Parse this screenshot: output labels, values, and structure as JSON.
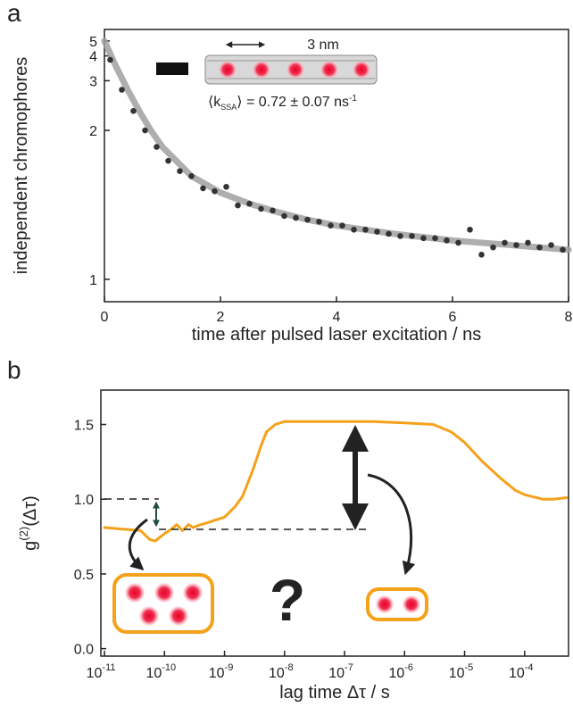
{
  "chart_data": [
    {
      "type": "scatter",
      "panel_label": "a",
      "x": [
        0.1,
        0.3,
        0.5,
        0.7,
        0.9,
        1.1,
        1.3,
        1.5,
        1.7,
        1.9,
        2.1,
        2.3,
        2.5,
        2.7,
        2.9,
        3.1,
        3.3,
        3.5,
        3.7,
        3.9,
        4.1,
        4.3,
        4.5,
        4.7,
        4.9,
        5.1,
        5.3,
        5.5,
        5.7,
        5.9,
        6.1,
        6.3,
        6.5,
        6.7,
        6.9,
        7.1,
        7.3,
        7.5,
        7.7,
        7.9
      ],
      "series": [
        {
          "color": "#333333",
          "values": [
            3.8,
            2.75,
            2.3,
            2.0,
            1.8,
            1.66,
            1.57,
            1.53,
            1.44,
            1.42,
            1.45,
            1.33,
            1.34,
            1.31,
            1.3,
            1.27,
            1.26,
            1.25,
            1.24,
            1.22,
            1.22,
            1.2,
            1.2,
            1.19,
            1.18,
            1.17,
            1.17,
            1.16,
            1.16,
            1.15,
            1.14,
            1.2,
            1.09,
            1.12,
            1.14,
            1.13,
            1.14,
            1.12,
            1.13,
            1.11
          ]
        }
      ],
      "fit": {
        "color": "#a0a0a0",
        "x": [
          0,
          0.2,
          0.4,
          0.6,
          0.8,
          1.0,
          1.5,
          2,
          2.5,
          3,
          3.5,
          4,
          5,
          6,
          7,
          8
        ],
        "values": [
          5.0,
          3.5,
          2.75,
          2.3,
          2.0,
          1.8,
          1.53,
          1.41,
          1.34,
          1.29,
          1.25,
          1.22,
          1.18,
          1.15,
          1.13,
          1.11
        ]
      },
      "xlabel": "time after pulsed laser excitation / ns",
      "ylabel": "independent chromophores",
      "xlim": [
        0,
        8
      ],
      "xticks": [
        0,
        2,
        4,
        6,
        8
      ],
      "ylim": [
        0.93,
        6.2
      ],
      "yticks": [
        1,
        2,
        3,
        4,
        5
      ],
      "yscale": "reciprocal",
      "annotations": {
        "length": "3 nm",
        "rate_open": "⟨k",
        "rate_sub": "SSA",
        "rate_main": "⟩ = 0.72 ± 0.07 ns",
        "rate_sup": "-1"
      }
    },
    {
      "type": "line",
      "panel_label": "b",
      "x": [
        1e-11,
        2e-11,
        4e-11,
        5.7e-11,
        7e-11,
        1e-10,
        1.3e-10,
        1.6e-10,
        2e-10,
        2.5e-10,
        3e-10,
        4e-10,
        5e-10,
        7e-10,
        1e-09,
        1.5e-09,
        2e-09,
        3e-09,
        4e-09,
        5e-09,
        7e-09,
        1e-08,
        3e-08,
        1e-07,
        3e-07,
        1e-06,
        3e-06,
        6e-06,
        1e-05,
        2e-05,
        4e-05,
        7e-05,
        0.0001,
        0.0002,
        0.0003,
        0.0005
      ],
      "series": [
        {
          "color": "#f5a21b",
          "values": [
            0.81,
            0.8,
            0.79,
            0.73,
            0.72,
            0.77,
            0.8,
            0.83,
            0.79,
            0.83,
            0.81,
            0.83,
            0.84,
            0.86,
            0.88,
            0.95,
            1.02,
            1.2,
            1.35,
            1.45,
            1.5,
            1.52,
            1.52,
            1.52,
            1.52,
            1.51,
            1.5,
            1.45,
            1.38,
            1.25,
            1.14,
            1.06,
            1.03,
            1.0,
            1.0,
            1.01
          ]
        }
      ],
      "xscale": "log",
      "xlabel": "lag time Δτ / s",
      "ylabel": {
        "main": "g",
        "superscript": "(2)",
        "argument": "(Δτ)"
      },
      "xlim": [
        8.7e-12,
        0.00054
      ],
      "xticks": [
        {
          "value": 1e-11,
          "label": "10",
          "exponent": "-11"
        },
        {
          "value": 1e-10,
          "label": "10",
          "exponent": "-10"
        },
        {
          "value": 1e-09,
          "label": "10",
          "exponent": "-9"
        },
        {
          "value": 1e-08,
          "label": "10",
          "exponent": "-8"
        },
        {
          "value": 1e-07,
          "label": "10",
          "exponent": "-7"
        },
        {
          "value": 1e-06,
          "label": "10",
          "exponent": "-6"
        },
        {
          "value": 1e-05,
          "label": "10",
          "exponent": "-5"
        },
        {
          "value": 0.0001,
          "label": "10",
          "exponent": "-4"
        }
      ],
      "ylim": [
        -0.05,
        1.73
      ],
      "yticks": [
        {
          "value": 0,
          "label": "0.0"
        },
        0.5,
        {
          "value": 1,
          "label": "1.0"
        },
        1.5
      ],
      "annotation": "?"
    }
  ]
}
